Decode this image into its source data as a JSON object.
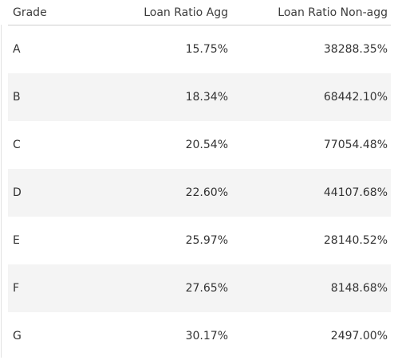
{
  "table": {
    "columns": [
      "Grade",
      "Loan Ratio Agg",
      "Loan Ratio Non-agg"
    ],
    "rows": [
      [
        "A",
        "15.75%",
        "38288.35%"
      ],
      [
        "B",
        "18.34%",
        "68442.10%"
      ],
      [
        "C",
        "20.54%",
        "77054.48%"
      ],
      [
        "D",
        "22.60%",
        "44107.68%"
      ],
      [
        "E",
        "25.97%",
        "28140.52%"
      ],
      [
        "F",
        "27.65%",
        "8148.68%"
      ],
      [
        "G",
        "30.17%",
        "2497.00%"
      ]
    ]
  }
}
